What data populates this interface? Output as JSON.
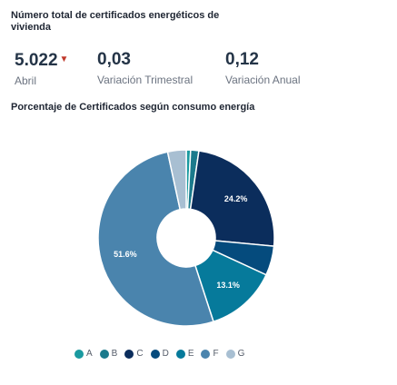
{
  "section1": {
    "title": "Número total de certificados energéticos de vivienda"
  },
  "kpis": [
    {
      "value": "5.022",
      "label": "Abril",
      "trend": "down",
      "trend_color": "#c0392b"
    },
    {
      "value": "0,03",
      "label": "Variación Trimestral"
    },
    {
      "value": "0,12",
      "label": "Variación Anual"
    }
  ],
  "section2": {
    "title": "Porcentaje de Certificados según consumo energía"
  },
  "chart_data": {
    "type": "pie",
    "style": "donut",
    "title": "Porcentaje de Certificados según consumo energía",
    "legend_position": "bottom",
    "categories": [
      "A",
      "B",
      "C",
      "D",
      "E",
      "F",
      "G"
    ],
    "values": [
      0.8,
      1.5,
      24.2,
      5.4,
      13.1,
      51.6,
      3.4
    ],
    "data_labels": [
      "",
      "",
      "24.2%",
      "",
      "13.1%",
      "51.6%",
      ""
    ],
    "colors": [
      "#1a9aa0",
      "#1b7a8c",
      "#0b2d5c",
      "#054b7d",
      "#067a9b",
      "#4a84ad",
      "#a8bfd2"
    ]
  }
}
